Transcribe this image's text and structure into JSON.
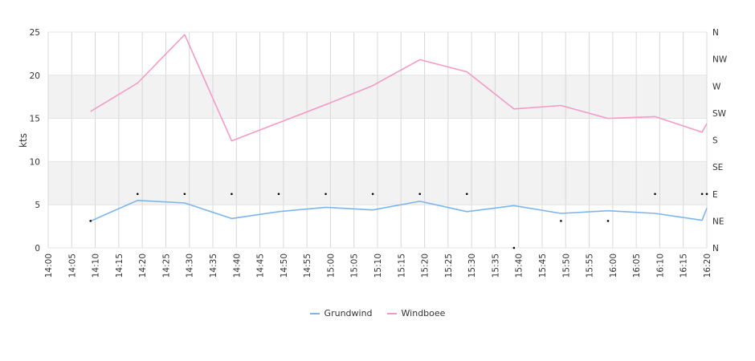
{
  "chart_data": {
    "type": "line",
    "ylabel": "kts",
    "ylim": [
      0,
      25
    ],
    "yticks": [
      0,
      5,
      10,
      15,
      20,
      25
    ],
    "y_bands": [
      [
        5,
        10
      ],
      [
        15,
        20
      ]
    ],
    "x_ticks": [
      "14:00",
      "14:05",
      "14:10",
      "14:15",
      "14:20",
      "14:25",
      "14:30",
      "14:35",
      "14:40",
      "14:45",
      "14:50",
      "14:55",
      "15:00",
      "15:05",
      "15:10",
      "15:15",
      "15:20",
      "15:25",
      "15:30",
      "15:35",
      "15:40",
      "15:45",
      "15:50",
      "15:55",
      "16:00",
      "16:05",
      "16:10",
      "16:15",
      "16:20"
    ],
    "right_axis": {
      "labels": [
        "N",
        "NE",
        "E",
        "SE",
        "S",
        "SW",
        "W",
        "NW",
        "N"
      ]
    },
    "series": [
      {
        "name": "Grundwind",
        "color": "#7cb5ec",
        "x": [
          "14:09",
          "14:19",
          "14:29",
          "14:39",
          "14:49",
          "14:59",
          "15:09",
          "15:19",
          "15:29",
          "15:39",
          "15:49",
          "15:59",
          "16:09",
          "16:19",
          "16:20"
        ],
        "values": [
          3.1,
          5.5,
          5.2,
          3.4,
          4.2,
          4.7,
          4.4,
          5.4,
          4.2,
          4.9,
          4.0,
          4.3,
          4.0,
          3.2,
          4.6
        ]
      },
      {
        "name": "Windboee",
        "color": "#f39bc6",
        "x": [
          "14:09",
          "14:19",
          "14:29",
          "14:39",
          "14:49",
          "14:59",
          "15:09",
          "15:19",
          "15:29",
          "15:39",
          "15:49",
          "15:59",
          "16:09",
          "16:19",
          "16:20"
        ],
        "values": [
          15.8,
          19.1,
          24.7,
          12.4,
          14.5,
          16.6,
          18.8,
          21.8,
          20.4,
          16.1,
          16.5,
          15.0,
          15.2,
          13.4,
          14.4
        ]
      }
    ],
    "direction_points": {
      "x": [
        "14:09",
        "14:19",
        "14:29",
        "14:39",
        "14:49",
        "14:59",
        "15:09",
        "15:19",
        "15:29",
        "15:39",
        "15:49",
        "15:59",
        "16:09",
        "16:19",
        "16:20"
      ],
      "values": [
        "NE",
        "E",
        "E",
        "E",
        "E",
        "E",
        "E",
        "E",
        "E",
        "N",
        "NE",
        "NE",
        "E",
        "E",
        "E"
      ]
    }
  }
}
